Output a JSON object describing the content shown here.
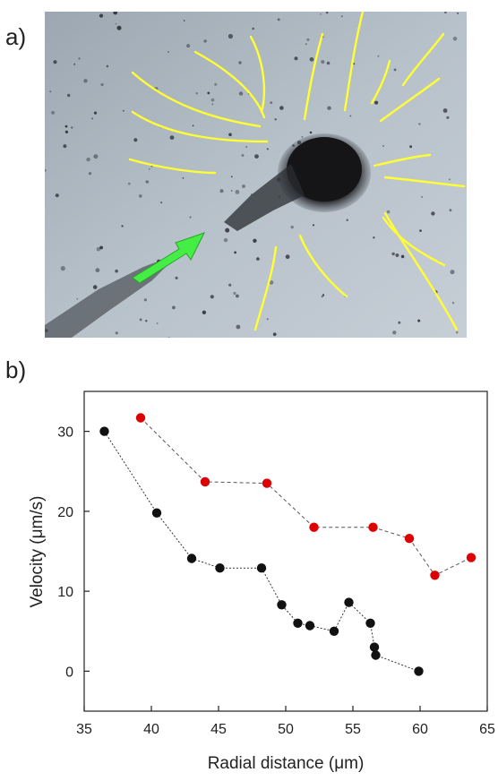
{
  "panels": {
    "a": {
      "label": "a)"
    },
    "b": {
      "label": "b)"
    }
  },
  "colors": {
    "series_black": "#111111",
    "series_red": "#dd0000",
    "flow_lines": "#ffff33",
    "arrow": "#44ee44"
  },
  "chart_data": {
    "type": "scatter",
    "xlabel": "Radial distance (μm)",
    "ylabel": "Velocity (μm/s)",
    "xlim": [
      35,
      65
    ],
    "ylim": [
      -5,
      35
    ],
    "xticks": [
      35,
      40,
      45,
      50,
      55,
      60,
      65
    ],
    "yticks": [
      0,
      10,
      20,
      30
    ],
    "grid": false,
    "legend": false,
    "series": [
      {
        "color": "#111111",
        "style": "dotted line with circle markers",
        "x": [
          36.5,
          40.4,
          43.0,
          45.1,
          48.2,
          49.7,
          50.9,
          51.8,
          53.6,
          54.7,
          56.3,
          56.6,
          56.7,
          59.9
        ],
        "y": [
          30.0,
          19.8,
          14.1,
          12.9,
          12.9,
          8.3,
          6.0,
          5.7,
          5.0,
          8.6,
          6.0,
          3.0,
          2.0,
          0.0
        ]
      },
      {
        "color": "#dd0000",
        "style": "dashed line with circle markers",
        "x": [
          39.2,
          44.0,
          48.6,
          52.1,
          56.5,
          59.2,
          61.1,
          63.8
        ],
        "y": [
          31.7,
          23.7,
          23.5,
          18.0,
          18.0,
          16.6,
          12.0,
          14.2
        ]
      }
    ]
  }
}
